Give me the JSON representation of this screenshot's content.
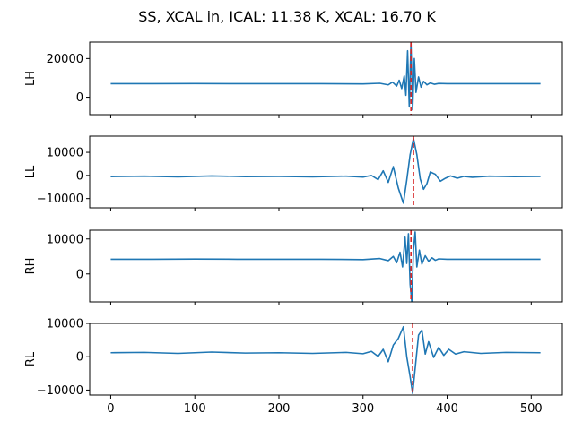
{
  "figure": {
    "title": "SS, XCAL in, ICAL: 11.38 K, XCAL: 16.70 K"
  },
  "colors": {
    "series": "#1f77b4",
    "marker_line": "#d62728",
    "axes": "#000000"
  },
  "chart_data": [
    {
      "type": "line",
      "ylabel": "LH",
      "xlim": [
        -25,
        537
      ],
      "ylim": [
        -9000,
        28500
      ],
      "yticks": [
        0,
        20000
      ],
      "ytick_labels": [
        "0",
        "20000"
      ],
      "baseline": 7000,
      "peak_x": 357,
      "marker_x": 357,
      "marker_label": "",
      "series": [
        {
          "x": [
            0,
            50,
            100,
            150,
            200,
            250,
            300,
            320,
            330,
            335,
            340,
            343,
            346,
            349,
            351,
            353,
            355,
            357,
            359,
            361,
            363,
            366,
            369,
            372,
            376,
            380,
            385,
            390,
            400,
            420,
            450,
            511
          ],
          "y": [
            7000,
            7000,
            7050,
            7000,
            7000,
            7000,
            6900,
            7200,
            6400,
            7800,
            5800,
            8800,
            4500,
            11000,
            1000,
            24000,
            -5000,
            28000,
            -6500,
            20000,
            2500,
            10500,
            5200,
            8200,
            6400,
            7400,
            6700,
            7100,
            7000,
            7000,
            7000,
            7000
          ]
        }
      ]
    },
    {
      "type": "line",
      "ylabel": "LL",
      "xlim": [
        -25,
        537
      ],
      "ylim": [
        -14000,
        17000
      ],
      "yticks": [
        -10000,
        0,
        10000
      ],
      "ytick_labels": [
        "−10000",
        "0",
        "10000"
      ],
      "baseline": -500,
      "peak_x": 360,
      "marker_x": 360,
      "marker_label": "",
      "series": [
        {
          "x": [
            0,
            40,
            80,
            120,
            160,
            200,
            240,
            280,
            300,
            310,
            318,
            324,
            330,
            336,
            342,
            348,
            352,
            356,
            360,
            364,
            368,
            372,
            376,
            380,
            386,
            392,
            398,
            404,
            412,
            420,
            430,
            450,
            480,
            511
          ],
          "y": [
            -500,
            -300,
            -600,
            -200,
            -500,
            -400,
            -600,
            -300,
            -700,
            0,
            -1800,
            2000,
            -3000,
            3800,
            -5500,
            -12000,
            -2000,
            9000,
            16000,
            9000,
            -1500,
            -6000,
            -3500,
            1500,
            500,
            -2500,
            -1200,
            -200,
            -1200,
            -400,
            -800,
            -300,
            -500,
            -400
          ]
        }
      ]
    },
    {
      "type": "line",
      "ylabel": "RH",
      "xlim": [
        -25,
        537
      ],
      "ylim": [
        -8000,
        12500
      ],
      "yticks": [
        0,
        10000
      ],
      "ytick_labels": [
        "0",
        "10000"
      ],
      "baseline": 4200,
      "peak_x": 357,
      "marker_x": 357,
      "marker_label": "",
      "series": [
        {
          "x": [
            0,
            50,
            100,
            150,
            200,
            250,
            300,
            320,
            330,
            336,
            340,
            344,
            347,
            350,
            352,
            354,
            356,
            358,
            360,
            362,
            364,
            367,
            370,
            374,
            378,
            382,
            386,
            390,
            400,
            420,
            460,
            511
          ],
          "y": [
            4200,
            4200,
            4250,
            4200,
            4200,
            4200,
            4100,
            4400,
            3800,
            5000,
            3200,
            6200,
            2000,
            10500,
            3000,
            11500,
            -3000,
            -8000,
            7000,
            12000,
            2000,
            6800,
            2800,
            5200,
            3600,
            4600,
            3900,
            4300,
            4200,
            4200,
            4200,
            4200
          ]
        }
      ]
    },
    {
      "type": "line",
      "ylabel": "RL",
      "xlim": [
        -25,
        537
      ],
      "ylim": [
        -11500,
        10000
      ],
      "yticks": [
        -10000,
        0,
        10000
      ],
      "ytick_labels": [
        "−10000",
        "0",
        "10000"
      ],
      "baseline": 1200,
      "peak_x": 359,
      "marker_x": 359,
      "marker_label": "",
      "series": [
        {
          "x": [
            0,
            40,
            80,
            120,
            160,
            200,
            240,
            280,
            300,
            310,
            318,
            324,
            330,
            336,
            342,
            348,
            352,
            356,
            359,
            362,
            366,
            370,
            374,
            378,
            384,
            390,
            396,
            402,
            410,
            420,
            440,
            470,
            511
          ],
          "y": [
            1200,
            1300,
            1000,
            1400,
            1100,
            1200,
            1000,
            1300,
            900,
            1600,
            100,
            2200,
            -1500,
            3500,
            5500,
            9000,
            0,
            -6000,
            -11000,
            -3500,
            6500,
            8000,
            800,
            4500,
            -200,
            2800,
            400,
            2200,
            800,
            1500,
            1000,
            1300,
            1200
          ]
        }
      ]
    }
  ],
  "shared_x_axis": {
    "xticks": [
      0,
      100,
      200,
      300,
      400,
      500
    ],
    "xtick_labels": [
      "0",
      "100",
      "200",
      "300",
      "400",
      "500"
    ]
  }
}
